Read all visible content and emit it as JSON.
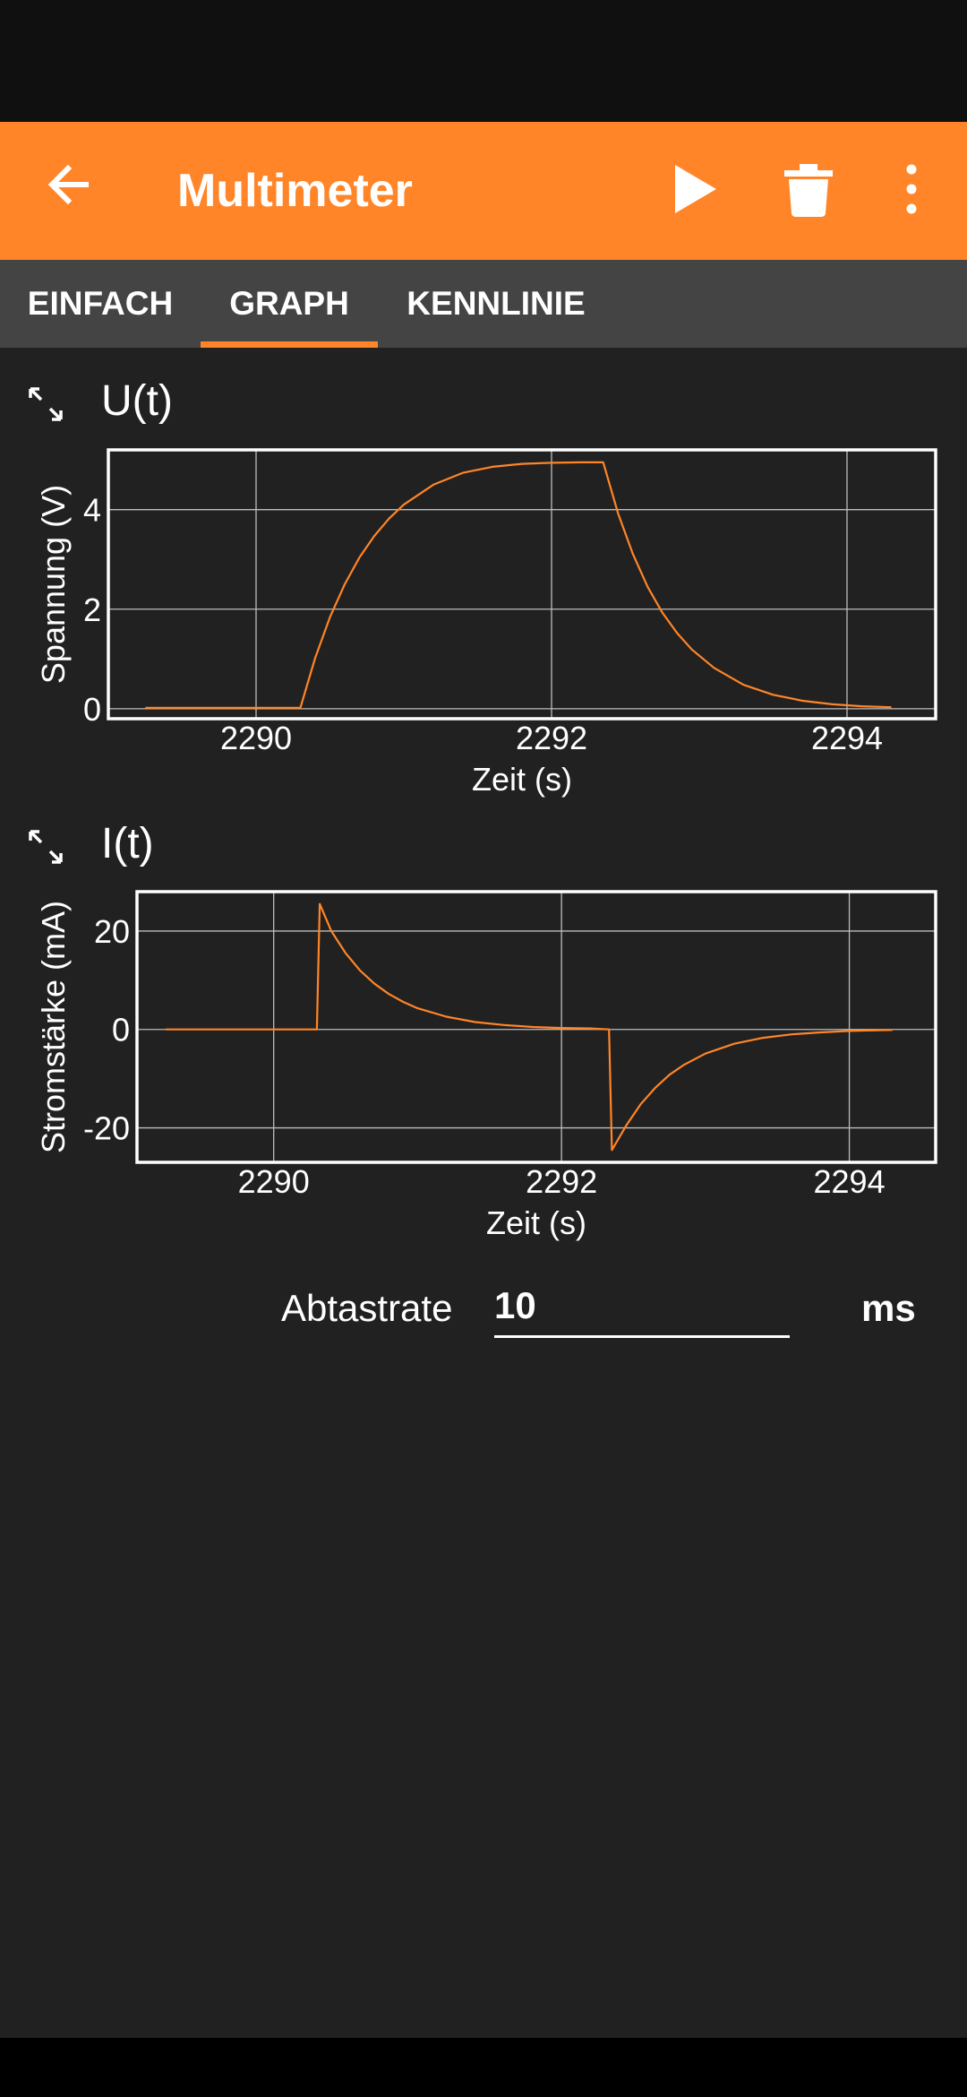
{
  "app_bar": {
    "title": "Multimeter",
    "accent_color": "#ff8528",
    "icons": [
      "arrow-back-icon",
      "play-icon",
      "delete-icon",
      "more-vert-icon"
    ]
  },
  "tabs": [
    {
      "label": "EINFACH",
      "selected": false
    },
    {
      "label": "GRAPH",
      "selected": true
    },
    {
      "label": "KENNLINIE",
      "selected": false
    }
  ],
  "charts": [
    {
      "title": "U(t)",
      "expand_icon": "expand-icon"
    },
    {
      "title": "I(t)",
      "expand_icon": "expand-icon"
    }
  ],
  "chart_data": [
    {
      "type": "line",
      "title": "U(t)",
      "xlabel": "Zeit (s)",
      "ylabel": "Spannung (V)",
      "xlim": [
        2289.0,
        2294.6
      ],
      "ylim": [
        -0.2,
        5.2
      ],
      "xticks": [
        2290,
        2292,
        2294
      ],
      "yticks": [
        0,
        2,
        4
      ],
      "xtick_labels": [
        "2290",
        "2292",
        "2294"
      ],
      "ytick_labels": [
        "0",
        "2",
        "4"
      ],
      "grid": true,
      "line_color": "#ff8528",
      "series": [
        {
          "x": [
            2289.25,
            2289.8,
            2290.3,
            2290.4,
            2290.5,
            2290.6,
            2290.7,
            2290.8,
            2290.9,
            2291.0,
            2291.2,
            2291.4,
            2291.6,
            2291.8,
            2292.0,
            2292.2,
            2292.35,
            2292.45,
            2292.55,
            2292.65,
            2292.75,
            2292.85,
            2292.95,
            2293.1,
            2293.3,
            2293.5,
            2293.7,
            2293.9,
            2294.1,
            2294.3
          ],
          "y": [
            0.02,
            0.02,
            0.02,
            1.02,
            1.84,
            2.5,
            3.04,
            3.47,
            3.82,
            4.1,
            4.5,
            4.74,
            4.86,
            4.92,
            4.94,
            4.95,
            4.95,
            3.93,
            3.11,
            2.45,
            1.93,
            1.52,
            1.19,
            0.82,
            0.48,
            0.28,
            0.16,
            0.09,
            0.05,
            0.03
          ]
        }
      ]
    },
    {
      "type": "line",
      "title": "I(t)",
      "xlabel": "Zeit (s)",
      "ylabel": "Stromstärke (mA)",
      "xlim": [
        2289.05,
        2294.6
      ],
      "ylim": [
        -27,
        28
      ],
      "xticks": [
        2290,
        2292,
        2294
      ],
      "yticks": [
        -20,
        0,
        20
      ],
      "xtick_labels": [
        "2290",
        "2292",
        "2294"
      ],
      "ytick_labels": [
        "-20",
        "0",
        "20"
      ],
      "grid": true,
      "line_color": "#ff8528",
      "series": [
        {
          "x": [
            2289.25,
            2289.8,
            2290.3,
            2290.32,
            2290.4,
            2290.5,
            2290.6,
            2290.7,
            2290.8,
            2290.9,
            2291.0,
            2291.2,
            2291.4,
            2291.6,
            2291.8,
            2292.0,
            2292.2,
            2292.33,
            2292.35,
            2292.45,
            2292.55,
            2292.65,
            2292.75,
            2292.85,
            2293.0,
            2293.2,
            2293.4,
            2293.6,
            2293.8,
            2294.0,
            2294.3
          ],
          "y": [
            0.0,
            0.0,
            0.0,
            25.5,
            20.0,
            15.5,
            12.0,
            9.3,
            7.2,
            5.6,
            4.3,
            2.6,
            1.5,
            0.9,
            0.5,
            0.3,
            0.2,
            0.0,
            -24.5,
            -19.5,
            -15.2,
            -11.9,
            -9.2,
            -7.2,
            -4.9,
            -2.9,
            -1.7,
            -1.0,
            -0.6,
            -0.3,
            -0.1
          ]
        }
      ]
    }
  ],
  "sampling": {
    "label": "Abtastrate",
    "value": "10",
    "unit": "ms"
  }
}
